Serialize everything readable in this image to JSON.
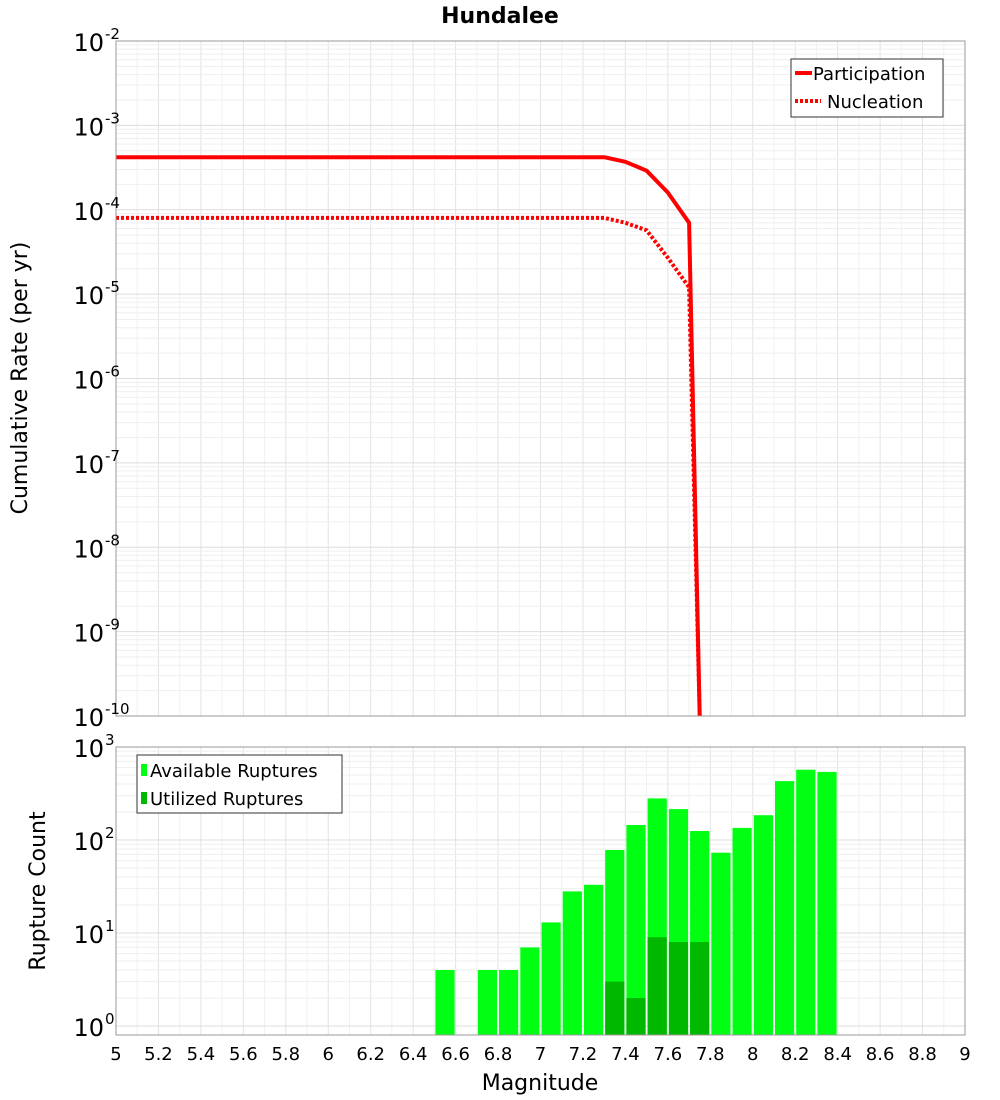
{
  "chart_data": [
    {
      "type": "line",
      "title": "Hundalee",
      "ylabel": "Cumulative Rate (per yr)",
      "xlabel": "",
      "yscale": "log",
      "xlim": [
        5,
        9
      ],
      "ylim": [
        1e-10,
        0.01
      ],
      "ytick_exponents": [
        "-2",
        "-3",
        "-4",
        "-5",
        "-6",
        "-7",
        "-8",
        "-9",
        "-10"
      ],
      "ytick_base": "10",
      "grid": true,
      "legend_position": "top-right",
      "series": [
        {
          "name": "Participation",
          "style": "solid",
          "color": "#ff0000",
          "x": [
            5.0,
            5.5,
            6.0,
            6.5,
            7.0,
            7.3,
            7.4,
            7.5,
            7.6,
            7.7,
            7.75
          ],
          "y": [
            0.00042,
            0.00042,
            0.00042,
            0.00042,
            0.00042,
            0.00042,
            0.00037,
            0.00029,
            0.00016,
            7e-05,
            1e-10
          ]
        },
        {
          "name": "Nucleation",
          "style": "dotted",
          "color": "#ff0000",
          "x": [
            5.0,
            5.5,
            6.0,
            6.5,
            7.0,
            7.3,
            7.4,
            7.5,
            7.6,
            7.7,
            7.75
          ],
          "y": [
            8e-05,
            8e-05,
            8e-05,
            8e-05,
            8e-05,
            8e-05,
            7e-05,
            5.7e-05,
            2.7e-05,
            1.2e-05,
            1e-10
          ]
        }
      ]
    },
    {
      "type": "bar",
      "title": "",
      "xlabel": "Magnitude",
      "ylabel": "Rupture Count",
      "yscale": "log",
      "xlim": [
        5,
        9
      ],
      "ylim": [
        0.8,
        1000
      ],
      "ytick_exponents": [
        "0",
        "1",
        "2",
        "3"
      ],
      "ytick_base": "10",
      "xticks": [
        "5",
        "5.2",
        "5.4",
        "5.6",
        "5.8",
        "6",
        "6.2",
        "6.4",
        "6.6",
        "6.8",
        "7",
        "7.2",
        "7.4",
        "7.6",
        "7.8",
        "8",
        "8.2",
        "8.4",
        "8.6",
        "8.8",
        "9"
      ],
      "bin_width": 0.1,
      "grid": true,
      "legend_position": "top-left",
      "series": [
        {
          "name": "Available Ruptures",
          "color": "#00ff13",
          "x": [
            6.55,
            6.75,
            6.85,
            6.95,
            7.05,
            7.15,
            7.25,
            7.35,
            7.45,
            7.55,
            7.65,
            7.75,
            7.85,
            7.95,
            8.05,
            8.15,
            8.25,
            8.35
          ],
          "values": [
            4,
            4,
            4,
            7,
            13,
            28,
            33,
            78,
            145,
            280,
            215,
            125,
            73,
            135,
            185,
            430,
            570,
            540
          ]
        },
        {
          "name": "Utilized Ruptures",
          "color": "#00b800",
          "x": [
            7.35,
            7.45,
            7.55,
            7.65,
            7.75
          ],
          "values": [
            3,
            2,
            9,
            8,
            8
          ]
        }
      ]
    }
  ]
}
